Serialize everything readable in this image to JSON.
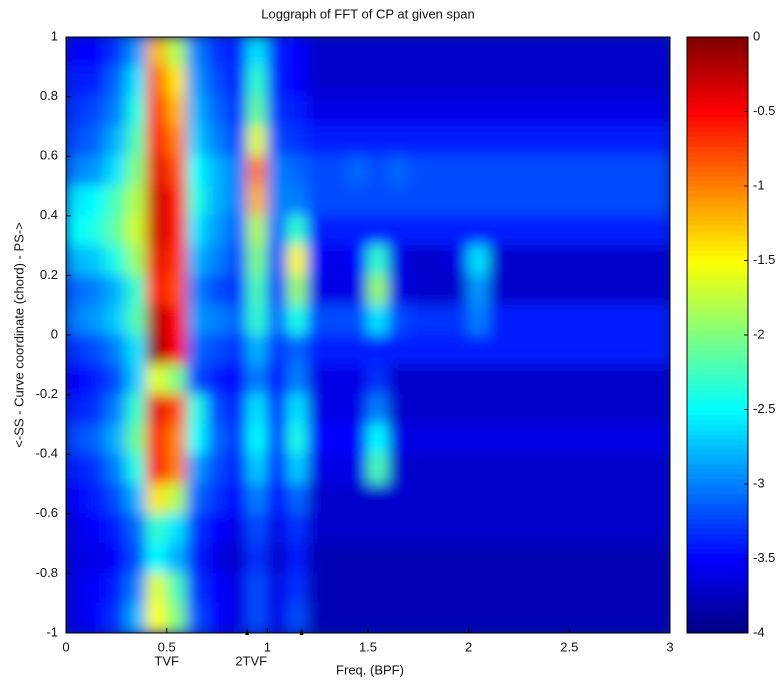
{
  "chart_data": {
    "type": "heatmap",
    "title": "Loggraph of FFT of CP at given span",
    "xlabel": "Freq. (BPF)",
    "ylabel": "<-SS - Curve coordinate (chord) - PS->",
    "xlim": [
      0,
      3
    ],
    "ylim": [
      -1,
      1
    ],
    "xticks": [
      0,
      0.5,
      1,
      1.5,
      2,
      2.5,
      3
    ],
    "yticks": [
      -1,
      -0.8,
      -0.6,
      -0.4,
      -0.2,
      0,
      0.2,
      0.4,
      0.6,
      0.8,
      1
    ],
    "colormap": "jet",
    "clim": [
      -4,
      0
    ],
    "cticks": [
      0,
      -0.5,
      -1,
      -1.5,
      -2,
      -2.5,
      -3,
      -3.5,
      -4
    ],
    "annotations": [
      {
        "x": 0.5,
        "text": "TVF"
      },
      {
        "x": 0.92,
        "text": "2TVF"
      }
    ],
    "markers": [
      0.9,
      1.17
    ],
    "x": [
      0.05,
      0.15,
      0.25,
      0.35,
      0.45,
      0.55,
      0.65,
      0.75,
      0.85,
      0.95,
      1.05,
      1.15,
      1.25,
      1.35,
      1.45,
      1.55,
      1.65,
      1.75,
      1.85,
      1.95,
      2.05,
      2.15,
      2.25,
      2.35,
      2.45,
      2.55,
      2.65,
      2.75,
      2.85,
      2.95
    ],
    "y": [
      0.95,
      0.85,
      0.75,
      0.65,
      0.55,
      0.45,
      0.35,
      0.25,
      0.15,
      0.05,
      -0.05,
      -0.15,
      -0.25,
      -0.35,
      -0.45,
      -0.55,
      -0.65,
      -0.75,
      -0.85,
      -0.95
    ],
    "z": [
      [
        -3.5,
        -3.5,
        -3.3,
        -2.9,
        -1.2,
        -1.8,
        -3.0,
        -3.3,
        -3.4,
        -2.6,
        -3.4,
        -3.5,
        -3.7,
        -3.7,
        -3.7,
        -3.7,
        -3.7,
        -3.7,
        -3.7,
        -3.7,
        -3.7,
        -3.7,
        -3.7,
        -3.7,
        -3.7,
        -3.7,
        -3.7,
        -3.7,
        -3.7,
        -3.7
      ],
      [
        -3.4,
        -3.4,
        -3.1,
        -2.6,
        -0.9,
        -1.4,
        -2.9,
        -3.2,
        -3.4,
        -2.3,
        -3.4,
        -3.5,
        -3.7,
        -3.7,
        -3.7,
        -3.7,
        -3.7,
        -3.7,
        -3.7,
        -3.7,
        -3.7,
        -3.7,
        -3.7,
        -3.7,
        -3.7,
        -3.7,
        -3.7,
        -3.7,
        -3.7,
        -3.7
      ],
      [
        -3.3,
        -3.2,
        -3.0,
        -2.4,
        -0.7,
        -1.2,
        -2.8,
        -3.1,
        -3.3,
        -2.1,
        -3.3,
        -3.4,
        -3.6,
        -3.6,
        -3.6,
        -3.6,
        -3.6,
        -3.6,
        -3.6,
        -3.6,
        -3.6,
        -3.6,
        -3.6,
        -3.6,
        -3.6,
        -3.6,
        -3.6,
        -3.6,
        -3.6,
        -3.6
      ],
      [
        -3.2,
        -3.1,
        -2.8,
        -2.2,
        -0.5,
        -1.0,
        -2.7,
        -3.0,
        -3.2,
        -1.6,
        -3.2,
        -3.3,
        -3.4,
        -3.4,
        -3.4,
        -3.4,
        -3.4,
        -3.4,
        -3.4,
        -3.4,
        -3.4,
        -3.4,
        -3.4,
        -3.4,
        -3.4,
        -3.4,
        -3.4,
        -3.4,
        -3.4,
        -3.4
      ],
      [
        -3.0,
        -2.9,
        -2.6,
        -2.0,
        -0.4,
        -0.8,
        -2.5,
        -2.8,
        -3.0,
        -1.0,
        -3.0,
        -3.1,
        -3.2,
        -3.2,
        -3.1,
        -3.2,
        -3.1,
        -3.2,
        -3.2,
        -3.2,
        -3.2,
        -3.2,
        -3.2,
        -3.2,
        -3.2,
        -3.2,
        -3.2,
        -3.2,
        -3.2,
        -3.2
      ],
      [
        -2.6,
        -2.5,
        -2.2,
        -1.8,
        -0.3,
        -0.6,
        -2.4,
        -2.8,
        -3.0,
        -1.2,
        -3.0,
        -3.0,
        -3.2,
        -3.2,
        -3.2,
        -3.2,
        -3.2,
        -3.2,
        -3.2,
        -3.2,
        -3.2,
        -3.2,
        -3.2,
        -3.2,
        -3.2,
        -3.2,
        -3.2,
        -3.2,
        -3.2,
        -3.2
      ],
      [
        -2.5,
        -2.4,
        -2.1,
        -1.7,
        -0.3,
        -0.6,
        -2.6,
        -2.9,
        -3.1,
        -1.8,
        -3.1,
        -2.3,
        -3.4,
        -3.4,
        -3.4,
        -3.4,
        -3.4,
        -3.4,
        -3.4,
        -3.4,
        -3.4,
        -3.4,
        -3.4,
        -3.4,
        -3.4,
        -3.4,
        -3.4,
        -3.4,
        -3.4,
        -3.4
      ],
      [
        -2.8,
        -2.7,
        -2.4,
        -1.9,
        -0.4,
        -0.7,
        -2.8,
        -3.0,
        -3.2,
        -2.0,
        -3.2,
        -1.5,
        -3.5,
        -3.6,
        -3.5,
        -2.3,
        -3.6,
        -3.7,
        -3.7,
        -3.6,
        -2.6,
        -3.7,
        -3.7,
        -3.7,
        -3.7,
        -3.7,
        -3.7,
        -3.7,
        -3.7,
        -3.7
      ],
      [
        -3.1,
        -3.0,
        -2.8,
        -2.3,
        -0.5,
        -0.8,
        -3.0,
        -3.2,
        -3.3,
        -2.2,
        -3.3,
        -1.9,
        -3.6,
        -3.6,
        -3.6,
        -1.9,
        -3.6,
        -3.7,
        -3.7,
        -3.7,
        -2.9,
        -3.7,
        -3.7,
        -3.7,
        -3.7,
        -3.7,
        -3.7,
        -3.7,
        -3.7,
        -3.7
      ],
      [
        -3.0,
        -2.9,
        -2.7,
        -2.2,
        -0.2,
        -0.5,
        -2.9,
        -3.0,
        -3.1,
        -2.3,
        -3.1,
        -2.4,
        -3.2,
        -3.2,
        -3.2,
        -2.6,
        -3.2,
        -3.3,
        -3.3,
        -3.3,
        -3.0,
        -3.4,
        -3.4,
        -3.4,
        -3.4,
        -3.4,
        -3.4,
        -3.4,
        -3.4,
        -3.4
      ],
      [
        -3.3,
        -3.2,
        -3.0,
        -2.6,
        -0.1,
        -0.5,
        -3.1,
        -3.2,
        -3.3,
        -2.8,
        -3.3,
        -3.1,
        -3.4,
        -3.4,
        -3.4,
        -3.4,
        -3.4,
        -3.4,
        -3.4,
        -3.4,
        -3.4,
        -3.4,
        -3.4,
        -3.4,
        -3.4,
        -3.4,
        -3.4,
        -3.4,
        -3.4,
        -3.4
      ],
      [
        -3.5,
        -3.4,
        -3.2,
        -2.7,
        -1.6,
        -2.0,
        -3.2,
        -3.4,
        -3.5,
        -3.0,
        -3.5,
        -3.0,
        -3.6,
        -3.6,
        -3.6,
        -3.3,
        -3.7,
        -3.7,
        -3.7,
        -3.7,
        -3.7,
        -3.7,
        -3.7,
        -3.7,
        -3.7,
        -3.7,
        -3.7,
        -3.7,
        -3.7,
        -3.7
      ],
      [
        -3.4,
        -3.3,
        -3.0,
        -2.3,
        -0.4,
        -0.8,
        -2.4,
        -3.2,
        -3.4,
        -2.6,
        -3.4,
        -2.6,
        -3.6,
        -3.6,
        -3.6,
        -3.0,
        -3.7,
        -3.7,
        -3.7,
        -3.7,
        -3.7,
        -3.7,
        -3.7,
        -3.7,
        -3.7,
        -3.7,
        -3.7,
        -3.7,
        -3.7,
        -3.7
      ],
      [
        -3.2,
        -3.1,
        -2.8,
        -2.1,
        -0.6,
        -1.0,
        -2.5,
        -3.1,
        -3.3,
        -2.5,
        -3.3,
        -2.4,
        -3.5,
        -3.5,
        -3.5,
        -2.5,
        -3.6,
        -3.6,
        -3.6,
        -3.6,
        -3.6,
        -3.6,
        -3.6,
        -3.6,
        -3.6,
        -3.6,
        -3.6,
        -3.6,
        -3.6,
        -3.6
      ],
      [
        -3.4,
        -3.3,
        -3.0,
        -2.4,
        -0.5,
        -1.0,
        -2.9,
        -3.2,
        -3.4,
        -2.7,
        -3.4,
        -2.7,
        -3.6,
        -3.6,
        -3.6,
        -2.2,
        -3.7,
        -3.7,
        -3.7,
        -3.7,
        -3.7,
        -3.7,
        -3.7,
        -3.7,
        -3.7,
        -3.7,
        -3.7,
        -3.7,
        -3.7,
        -3.7
      ],
      [
        -3.5,
        -3.4,
        -3.2,
        -2.8,
        -1.4,
        -1.8,
        -3.1,
        -3.3,
        -3.5,
        -3.0,
        -3.5,
        -3.1,
        -3.7,
        -3.7,
        -3.7,
        -3.7,
        -3.7,
        -3.7,
        -3.7,
        -3.7,
        -3.7,
        -3.7,
        -3.7,
        -3.7,
        -3.7,
        -3.7,
        -3.7,
        -3.7,
        -3.7,
        -3.7
      ],
      [
        -3.6,
        -3.5,
        -3.4,
        -3.1,
        -2.3,
        -2.6,
        -3.3,
        -3.5,
        -3.6,
        -3.2,
        -3.6,
        -3.3,
        -3.7,
        -3.7,
        -3.7,
        -3.7,
        -3.7,
        -3.7,
        -3.7,
        -3.7,
        -3.7,
        -3.7,
        -3.7,
        -3.7,
        -3.7,
        -3.7,
        -3.7,
        -3.7,
        -3.7,
        -3.7
      ],
      [
        -3.6,
        -3.6,
        -3.5,
        -3.2,
        -2.5,
        -2.8,
        -3.4,
        -3.6,
        -3.7,
        -3.3,
        -3.7,
        -3.4,
        -3.8,
        -3.8,
        -3.8,
        -3.8,
        -3.8,
        -3.8,
        -3.8,
        -3.8,
        -3.8,
        -3.8,
        -3.8,
        -3.8,
        -3.8,
        -3.8,
        -3.8,
        -3.8,
        -3.8,
        -3.8
      ],
      [
        -3.6,
        -3.5,
        -3.4,
        -3.0,
        -1.6,
        -2.2,
        -3.3,
        -3.5,
        -3.6,
        -3.2,
        -3.6,
        -3.3,
        -3.8,
        -3.8,
        -3.8,
        -3.8,
        -3.8,
        -3.8,
        -3.8,
        -3.8,
        -3.8,
        -3.8,
        -3.8,
        -3.8,
        -3.8,
        -3.8,
        -3.8,
        -3.8,
        -3.8,
        -3.8
      ],
      [
        -3.6,
        -3.5,
        -3.3,
        -2.8,
        -1.5,
        -2.0,
        -3.2,
        -3.5,
        -3.6,
        -3.2,
        -3.6,
        -3.2,
        -3.8,
        -3.8,
        -3.8,
        -3.8,
        -3.8,
        -3.8,
        -3.8,
        -3.8,
        -3.8,
        -3.8,
        -3.8,
        -3.8,
        -3.8,
        -3.8,
        -3.8,
        -3.8,
        -3.8,
        -3.8
      ]
    ]
  }
}
